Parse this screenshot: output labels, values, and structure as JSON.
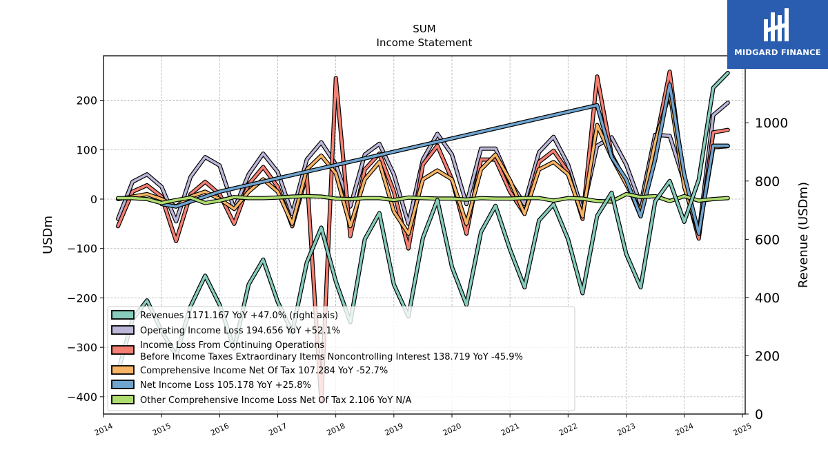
{
  "header": {
    "ticker": "SUM",
    "subtitle": "Income Statement"
  },
  "brand": {
    "name": "MIDGARD FINANCE",
    "color": "#2a5db0"
  },
  "chart_data": {
    "type": "line",
    "title": "SUM",
    "subtitle": "Income Statement",
    "ylabel": "USDm",
    "ylabel_right": "Revenue (USDm)",
    "ylim": [
      -435,
      290
    ],
    "ylim_right": [
      0,
      1230
    ],
    "xlim": [
      2014.0,
      2025.05
    ],
    "yticks": [
      -400,
      -300,
      -200,
      -100,
      0,
      100,
      200
    ],
    "yticks_right": [
      0,
      200,
      400,
      600,
      800,
      1000
    ],
    "xticks": [
      2014,
      2015,
      2016,
      2017,
      2018,
      2019,
      2020,
      2021,
      2022,
      2023,
      2024,
      2025
    ],
    "grid": true,
    "legend_position": "lower-left",
    "series": [
      {
        "name": "Revenues",
        "legend": "Revenues  1171.167 YoY +47.0% (right axis)",
        "axis": "right",
        "color": "#86cbbc",
        "x": [
          2014.25,
          2014.5,
          2014.75,
          2015.0,
          2015.25,
          2015.5,
          2015.75,
          2016.0,
          2016.25,
          2016.5,
          2016.75,
          2017.0,
          2017.25,
          2017.5,
          2017.75,
          2018.0,
          2018.25,
          2018.5,
          2018.75,
          2019.0,
          2019.25,
          2019.5,
          2019.75,
          2020.0,
          2020.25,
          2020.5,
          2020.75,
          2021.0,
          2021.25,
          2021.5,
          2021.75,
          2022.0,
          2022.25,
          2022.5,
          2022.75,
          2023.0,
          2023.25,
          2023.5,
          2023.75,
          2024.0,
          2024.25,
          2024.5,
          2024.75
        ],
        "values": [
          145,
          325,
          390,
          285,
          200,
          370,
          475,
          375,
          225,
          445,
          530,
          385,
          280,
          520,
          640,
          455,
          315,
          600,
          690,
          445,
          335,
          605,
          735,
          505,
          375,
          625,
          715,
          565,
          435,
          665,
          720,
          600,
          415,
          680,
          760,
          550,
          435,
          730,
          800,
          660,
          805,
          1120,
          1171
        ]
      },
      {
        "name": "Operating Income Loss",
        "legend": "Operating Income Loss  194.656 YoY +52.1%",
        "axis": "left",
        "color": "#bcb6d8",
        "x": [
          2014.25,
          2014.5,
          2014.75,
          2015.0,
          2015.25,
          2015.5,
          2015.75,
          2016.0,
          2016.25,
          2016.5,
          2016.75,
          2017.0,
          2017.25,
          2017.5,
          2017.75,
          2018.0,
          2018.25,
          2018.5,
          2018.75,
          2019.0,
          2019.25,
          2019.5,
          2019.75,
          2020.0,
          2020.25,
          2020.5,
          2020.75,
          2021.0,
          2021.25,
          2021.5,
          2021.75,
          2022.0,
          2022.25,
          2022.5,
          2022.75,
          2023.0,
          2023.25,
          2023.5,
          2023.75,
          2024.0,
          2024.25,
          2024.5,
          2024.75
        ],
        "values": [
          -40,
          35,
          50,
          25,
          -45,
          45,
          85,
          68,
          -20,
          50,
          92,
          55,
          -30,
          80,
          115,
          70,
          -15,
          90,
          112,
          50,
          -50,
          80,
          132,
          90,
          -10,
          102,
          102,
          35,
          -10,
          95,
          126,
          70,
          -25,
          108,
          125,
          70,
          -10,
          130,
          128,
          35,
          -70,
          170,
          195
        ]
      },
      {
        "name": "Income Loss From Continuing Operations Before Income Taxes Extraordinary Items Noncontrolling Interest",
        "legend_line1": "Income Loss From Continuing Operations",
        "legend_line2": "Before Income Taxes Extraordinary Items Noncontrolling Interest  138.719 YoY -45.9%",
        "axis": "left",
        "color": "#f47f72",
        "x": [
          2014.25,
          2014.5,
          2014.75,
          2015.0,
          2015.25,
          2015.5,
          2015.75,
          2016.0,
          2016.25,
          2016.5,
          2016.75,
          2017.0,
          2017.25,
          2017.5,
          2017.75,
          2018.0,
          2018.25,
          2018.5,
          2018.75,
          2019.0,
          2019.25,
          2019.5,
          2019.75,
          2020.0,
          2020.25,
          2020.5,
          2020.75,
          2021.0,
          2021.25,
          2021.5,
          2021.75,
          2022.0,
          2022.25,
          2022.5,
          2022.75,
          2023.0,
          2023.25,
          2023.5,
          2023.75,
          2024.0,
          2024.25,
          2024.5,
          2024.75
        ],
        "values": [
          -55,
          15,
          28,
          5,
          -85,
          10,
          35,
          10,
          -50,
          30,
          65,
          25,
          -55,
          50,
          -410,
          245,
          -75,
          60,
          92,
          15,
          -100,
          70,
          108,
          40,
          -70,
          80,
          80,
          15,
          -30,
          75,
          98,
          55,
          -40,
          248,
          90,
          35,
          -35,
          110,
          258,
          30,
          -80,
          135,
          140
        ]
      },
      {
        "name": "Comprehensive Income Net Of Tax",
        "legend": "Comprehensive Income Net Of Tax  107.284 YoY -52.7%",
        "axis": "left",
        "color": "#f7b465",
        "x": [
          2014.25,
          2014.5,
          2014.75,
          2015.0,
          2015.25,
          2015.5,
          2015.75,
          2016.0,
          2016.25,
          2016.5,
          2016.75,
          2017.0,
          2017.25,
          2017.5,
          2017.75,
          2018.0,
          2018.25,
          2018.5,
          2018.75,
          2019.0,
          2019.25,
          2019.5,
          2019.75,
          2020.0,
          2020.25,
          2020.5,
          2020.75,
          2021.0,
          2021.25,
          2021.5,
          2021.75,
          2022.0,
          2022.25,
          2022.5,
          2022.75,
          2023.0,
          2023.25,
          2023.5,
          2023.75,
          2024.0,
          2024.25,
          2024.5,
          2024.75
        ],
        "values": [
          0,
          5,
          10,
          0,
          -15,
          5,
          15,
          0,
          -20,
          15,
          40,
          15,
          -50,
          60,
          88,
          52,
          -55,
          40,
          75,
          -25,
          -70,
          40,
          58,
          40,
          -50,
          60,
          90,
          38,
          -30,
          60,
          75,
          50,
          -35,
          150,
          85,
          30,
          -25,
          115,
          215,
          25,
          -70,
          105,
          107
        ]
      },
      {
        "name": "Net Income Loss",
        "legend": "Net Income Loss  105.178 YoY +25.8%",
        "axis": "left",
        "color": "#6fa4cf",
        "x": [
          2015.0,
          2015.25,
          2015.5,
          2015.75,
          2016.0,
          2022.5,
          2022.75,
          2023.0,
          2023.25,
          2023.5,
          2023.75,
          2024.0,
          2024.25,
          2024.5,
          2024.75
        ],
        "values": [
          -10,
          -15,
          -5,
          5,
          15,
          190,
          85,
          40,
          -35,
          80,
          232,
          50,
          -70,
          108,
          108
        ]
      },
      {
        "name": "Other Comprehensive Income Loss Net Of Tax",
        "legend": "Other Comprehensive Income Loss Net Of Tax  2.106 YoY N/A",
        "axis": "left",
        "color": "#addc6f",
        "x": [
          2014.25,
          2014.5,
          2014.75,
          2015.0,
          2015.25,
          2015.5,
          2015.75,
          2016.0,
          2016.25,
          2016.5,
          2016.75,
          2017.0,
          2017.25,
          2017.5,
          2017.75,
          2018.0,
          2018.25,
          2018.5,
          2018.75,
          2019.0,
          2019.25,
          2019.5,
          2019.75,
          2020.0,
          2020.25,
          2020.5,
          2020.75,
          2021.0,
          2021.25,
          2021.5,
          2021.75,
          2022.0,
          2022.25,
          2022.5,
          2022.75,
          2023.0,
          2023.25,
          2023.5,
          2023.75,
          2024.0,
          2024.25,
          2024.5,
          2024.75
        ],
        "values": [
          2,
          2,
          0,
          -8,
          -2,
          3,
          -8,
          -3,
          4,
          2,
          2,
          3,
          5,
          6,
          5,
          1,
          0,
          2,
          2,
          -2,
          3,
          2,
          1,
          1,
          -1,
          2,
          1,
          1,
          2,
          2,
          -3,
          2,
          1,
          -4,
          -5,
          10,
          4,
          6,
          -4,
          6,
          -3,
          0,
          2
        ]
      }
    ]
  }
}
